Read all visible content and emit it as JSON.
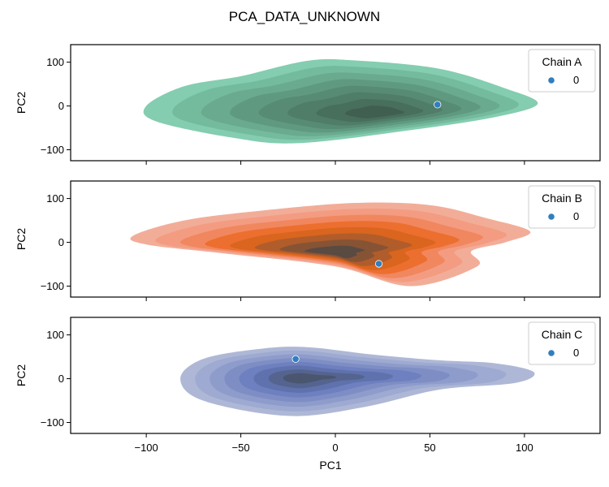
{
  "chart_data": {
    "type": "kde-contour-with-scatter",
    "title": "PCA_DATA_UNKNOWN",
    "xlabel": "PC1",
    "xlim": [
      -140,
      140
    ],
    "xticks": [
      -100,
      -50,
      0,
      50,
      100
    ],
    "xtick_labels": [
      "−100",
      "−50",
      "0",
      "50",
      "100"
    ],
    "shared_x": true,
    "panels": [
      {
        "legend_title": "Chain A",
        "legend_label": "0",
        "legend_position": "top-right",
        "ylabel": "PC2",
        "ylim": [
          -125,
          140
        ],
        "yticks": [
          100,
          0,
          -100
        ],
        "ytick_labels": [
          "100",
          "0",
          "−100"
        ],
        "palette": [
          "#84cdb0",
          "#74bb9e",
          "#6aaa8e",
          "#5f9a80",
          "#578b73",
          "#4f7d67",
          "#486e5c",
          "#415f51"
        ],
        "outline": [
          [
            -100,
            0
          ],
          [
            -80,
            45
          ],
          [
            -50,
            68
          ],
          [
            -15,
            103
          ],
          [
            10,
            104
          ],
          [
            55,
            85
          ],
          [
            90,
            40
          ],
          [
            107,
            5
          ],
          [
            85,
            -25
          ],
          [
            40,
            -55
          ],
          [
            -20,
            -85
          ],
          [
            -55,
            -72
          ],
          [
            -95,
            -35
          ]
        ],
        "mode": [
          24,
          -18
        ],
        "point": {
          "x": 54,
          "y": 3
        }
      },
      {
        "legend_title": "Chain B",
        "legend_label": "0",
        "legend_position": "top-right",
        "ylabel": "PC2",
        "ylim": [
          -125,
          140
        ],
        "yticks": [
          100,
          0,
          -100
        ],
        "ytick_labels": [
          "100",
          "0",
          "−100"
        ],
        "palette": [
          "#f2ad99",
          "#f39c82",
          "#f1875f",
          "#ec6f2f",
          "#d9651e",
          "#b15c2b",
          "#875335",
          "#594a42"
        ],
        "outline": [
          [
            -107,
            15
          ],
          [
            -80,
            50
          ],
          [
            -40,
            72
          ],
          [
            10,
            90
          ],
          [
            50,
            85
          ],
          [
            80,
            55
          ],
          [
            103,
            25
          ],
          [
            90,
            0
          ],
          [
            72,
            -20
          ],
          [
            75,
            -55
          ],
          [
            40,
            -100
          ],
          [
            0,
            -55
          ],
          [
            -60,
            -25
          ],
          [
            -100,
            -5
          ]
        ],
        "mode": [
          0,
          -25
        ],
        "point": {
          "x": 23,
          "y": -49
        }
      },
      {
        "legend_title": "Chain C",
        "legend_label": "0",
        "legend_position": "top-right",
        "ylabel": "PC2",
        "ylim": [
          -125,
          140
        ],
        "yticks": [
          100,
          0,
          -100
        ],
        "ytick_labels": [
          "100",
          "0",
          "−100"
        ],
        "palette": [
          "#aeb8d6",
          "#9eaad1",
          "#8e9ccb",
          "#7e8ec5",
          "#6e80bf",
          "#5f72ae",
          "#55648f",
          "#4a5570"
        ],
        "outline": [
          [
            -82,
            0
          ],
          [
            -70,
            45
          ],
          [
            -40,
            68
          ],
          [
            -15,
            72
          ],
          [
            20,
            55
          ],
          [
            55,
            42
          ],
          [
            85,
            35
          ],
          [
            105,
            15
          ],
          [
            95,
            -10
          ],
          [
            55,
            -25
          ],
          [
            15,
            -65
          ],
          [
            -25,
            -85
          ],
          [
            -70,
            -50
          ]
        ],
        "mode": [
          -18,
          2
        ],
        "point": {
          "x": -21,
          "y": 45
        }
      }
    ],
    "point_color": "#2f7ec0"
  }
}
